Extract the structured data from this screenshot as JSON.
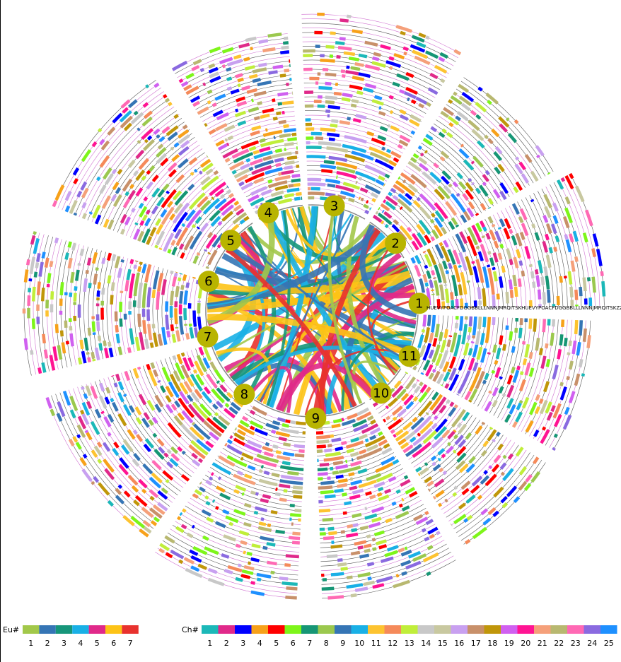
{
  "sectors": [
    "1",
    "2",
    "3",
    "4",
    "5",
    "6",
    "7",
    "8",
    "9",
    "10",
    "11"
  ],
  "sequence_label": "HUEVYPOACFDGGBBLLLNNNJMRQITSKHUEVYPOACFDGGBBLLLNNNJMRQITSKZZWW",
  "legend_eu": {
    "title": "Eu#",
    "items": [
      {
        "label": "1",
        "color": "#a2c84a"
      },
      {
        "label": "2",
        "color": "#3575b5"
      },
      {
        "label": "3",
        "color": "#16967a"
      },
      {
        "label": "4",
        "color": "#19b0e6"
      },
      {
        "label": "5",
        "color": "#e0298a"
      },
      {
        "label": "6",
        "color": "#fdc316"
      },
      {
        "label": "7",
        "color": "#e8322e"
      }
    ]
  },
  "legend_ch": {
    "title": "Ch#",
    "items": [
      {
        "label": "1",
        "color": "#1bb8b8"
      },
      {
        "label": "2",
        "color": "#e0298a"
      },
      {
        "label": "3",
        "color": "#0000ff"
      },
      {
        "label": "4",
        "color": "#f7a11a"
      },
      {
        "label": "5",
        "color": "#ff0000"
      },
      {
        "label": "6",
        "color": "#7ef51a"
      },
      {
        "label": "7",
        "color": "#169675"
      },
      {
        "label": "8",
        "color": "#9bc84e"
      },
      {
        "label": "9",
        "color": "#3575b5"
      },
      {
        "label": "10",
        "color": "#19b0e6"
      },
      {
        "label": "11",
        "color": "#fdc330"
      },
      {
        "label": "12",
        "color": "#f58a5a"
      },
      {
        "label": "13",
        "color": "#c0ee3a"
      },
      {
        "label": "14",
        "color": "#c8c8c8"
      },
      {
        "label": "15",
        "color": "#c8c8a0"
      },
      {
        "label": "16",
        "color": "#c8a0f0"
      },
      {
        "label": "17",
        "color": "#c8906a"
      },
      {
        "label": "18",
        "color": "#c0960a"
      },
      {
        "label": "19",
        "color": "#d060f0"
      },
      {
        "label": "20",
        "color": "#ff1493"
      },
      {
        "label": "21",
        "color": "#f5a07a"
      },
      {
        "label": "22",
        "color": "#b8b870"
      },
      {
        "label": "23",
        "color": "#ff69b4"
      },
      {
        "label": "24",
        "color": "#8a6ae0"
      },
      {
        "label": "25",
        "color": "#1e90ff"
      }
    ]
  }
}
